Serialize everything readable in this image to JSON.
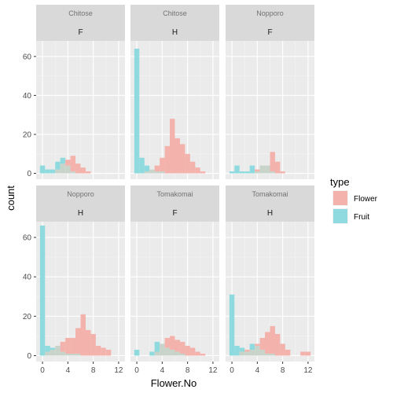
{
  "chart_data": {
    "type": "bar",
    "subtype": "faceted-histogram",
    "xlabel": "Flower.No",
    "ylabel": "count",
    "xlim": [
      -1,
      13
    ],
    "ylim": [
      -3,
      68
    ],
    "x_ticks": [
      "0",
      "4",
      "8",
      "12"
    ],
    "y_ticks": [
      "0",
      "20",
      "40",
      "60"
    ],
    "bin_width": 0.8,
    "bin_centers": [
      0,
      0.8,
      1.6,
      2.4,
      3.2,
      4.0,
      4.8,
      5.6,
      6.4,
      7.2,
      8.0,
      8.8,
      9.6,
      10.4,
      11.2,
      12.0
    ],
    "legend": {
      "title": "type",
      "entries": [
        {
          "name": "Flower",
          "color": "#F4B2AC"
        },
        {
          "name": "Fruit",
          "color": "#8EDADE"
        }
      ],
      "position": "right"
    },
    "colors": {
      "panel_bg": "#EBEBEB",
      "strip_bg": "#D9D9D9",
      "overlap": "#C8D3CA"
    },
    "grid": true,
    "facets": [
      {
        "strip_top": "Chitose",
        "strip_bottom": "F",
        "Flower": [
          0,
          0,
          0,
          2,
          5,
          7,
          9,
          5,
          3,
          1,
          0,
          0,
          0,
          0,
          0,
          0
        ],
        "Fruit": [
          4,
          2,
          2,
          6,
          8,
          4,
          1,
          0,
          0,
          0,
          0,
          0,
          0,
          0,
          0,
          0
        ]
      },
      {
        "strip_top": "Chitose",
        "strip_bottom": "H",
        "Flower": [
          0,
          0,
          1,
          2,
          4,
          8,
          14,
          28,
          18,
          15,
          10,
          6,
          3,
          1,
          0,
          0
        ],
        "Fruit": [
          64,
          8,
          4,
          2,
          1,
          1,
          0,
          0,
          0,
          0,
          0,
          0,
          0,
          0,
          0,
          0
        ]
      },
      {
        "strip_top": "Nopporo",
        "strip_bottom": "F",
        "Flower": [
          0,
          0,
          0,
          0,
          0,
          2,
          4,
          4,
          11,
          6,
          1,
          0,
          0,
          0,
          0,
          0
        ],
        "Fruit": [
          1,
          4,
          1,
          1,
          4,
          1,
          4,
          4,
          1,
          0,
          0,
          0,
          0,
          0,
          0,
          0
        ]
      },
      {
        "strip_top": "Nopporo",
        "strip_bottom": "H",
        "Flower": [
          0,
          2,
          3,
          5,
          7,
          9,
          9,
          14,
          21,
          13,
          11,
          5,
          4,
          3,
          0,
          0
        ],
        "Fruit": [
          66,
          5,
          4,
          5,
          2,
          1,
          1,
          1,
          0,
          0,
          0,
          0,
          0,
          0,
          0,
          0
        ]
      },
      {
        "strip_top": "Tomakomai",
        "strip_bottom": "F",
        "Flower": [
          0,
          0,
          0,
          0,
          2,
          6,
          9,
          10,
          8,
          7,
          5,
          4,
          2,
          1,
          0,
          0
        ],
        "Fruit": [
          3,
          0,
          0,
          2,
          7,
          6,
          4,
          3,
          2,
          1,
          0,
          0,
          0,
          0,
          0,
          0
        ]
      },
      {
        "strip_top": "Tomakomai",
        "strip_bottom": "H",
        "Flower": [
          0,
          0,
          2,
          3,
          3,
          6,
          9,
          12,
          15,
          11,
          6,
          3,
          0,
          0,
          2,
          2
        ],
        "Fruit": [
          31,
          5,
          4,
          2,
          6,
          5,
          3,
          1,
          1,
          0,
          0,
          0,
          0,
          0,
          0,
          0
        ]
      }
    ]
  }
}
